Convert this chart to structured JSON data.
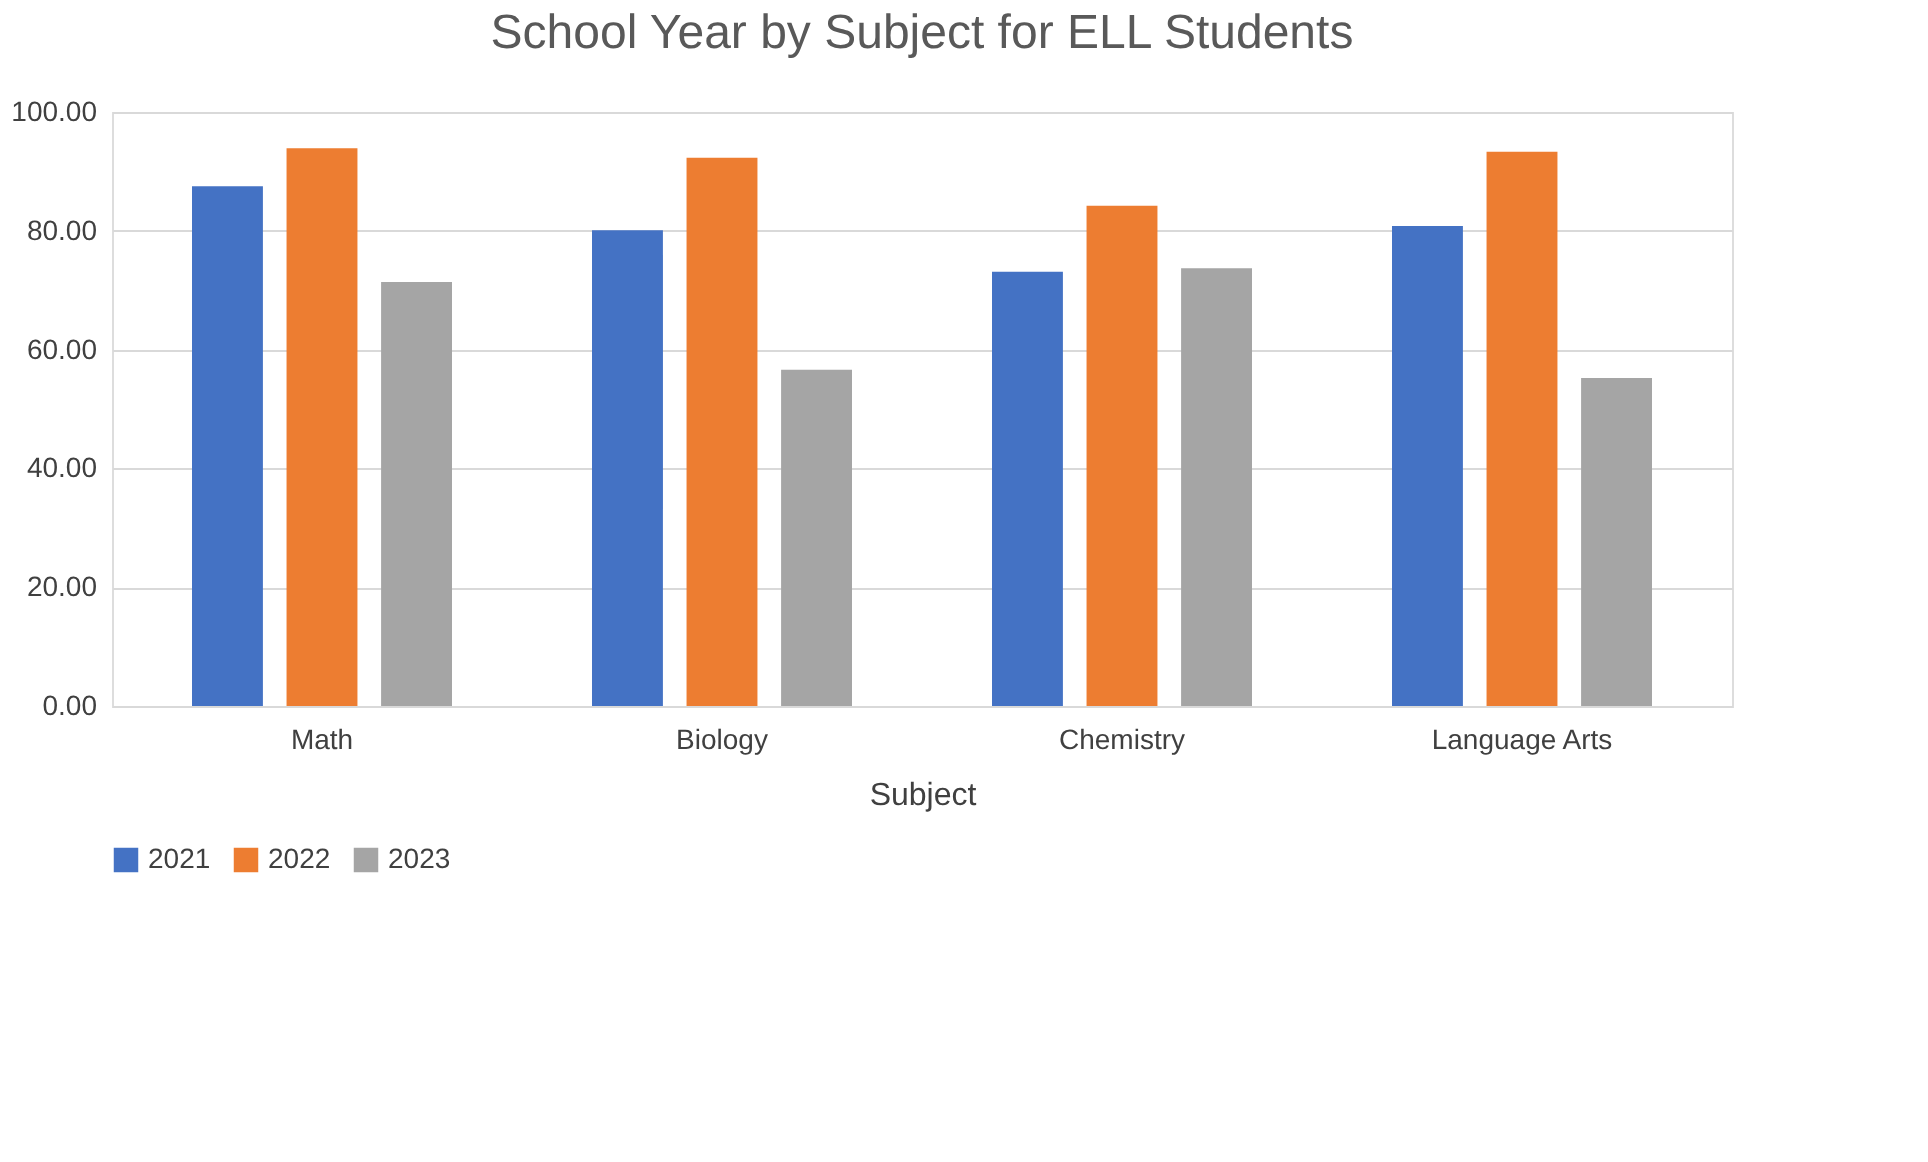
{
  "chart_data": {
    "type": "bar",
    "title": "School Year by Subject for ELL Students",
    "xlabel": "Subject",
    "categories": [
      "Math",
      "Biology",
      "Chemistry",
      "Language Arts"
    ],
    "series": [
      {
        "name": "2021",
        "color": "#4472c4",
        "values": [
          87.5,
          80.1,
          73.1,
          80.8
        ]
      },
      {
        "name": "2022",
        "color": "#ed7d31",
        "values": [
          93.9,
          92.3,
          84.2,
          93.3
        ]
      },
      {
        "name": "2023",
        "color": "#a5a5a5",
        "values": [
          71.4,
          56.6,
          73.7,
          55.2
        ]
      }
    ],
    "ylim": [
      0,
      100
    ],
    "yticks": [
      {
        "value": 0,
        "label": "0.00"
      },
      {
        "value": 20,
        "label": "20.00"
      },
      {
        "value": 40,
        "label": "40.00"
      },
      {
        "value": 60,
        "label": "60.00"
      },
      {
        "value": 80,
        "label": "80.00"
      },
      {
        "value": 100,
        "label": "100.00"
      }
    ],
    "grid": "y",
    "legend": "bottom"
  }
}
